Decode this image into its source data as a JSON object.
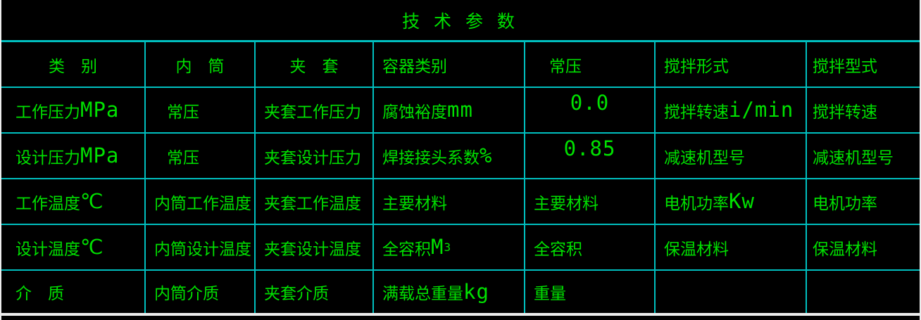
{
  "title": "技 术 参 数",
  "colors": {
    "background": "#000000",
    "grid_line": "#00bfbf",
    "outer_border": "#ededed",
    "text_green": "#00e000"
  },
  "grid": {
    "rows": [
      {
        "cells": [
          {
            "zh": "类　别"
          },
          {
            "zh": "内　筒"
          },
          {
            "zh": "夹　套"
          },
          {
            "zh": "容器类别"
          },
          {
            "zh": "常压"
          },
          {
            "zh": "搅拌形式"
          },
          {
            "zh": "搅拌型式"
          }
        ]
      },
      {
        "cells": [
          {
            "zh": "工作压力",
            "en": " MPa"
          },
          {
            "zh": "常压"
          },
          {
            "zh": "夹套工作压力"
          },
          {
            "zh": "腐蚀裕度",
            "en": " mm"
          },
          {
            "en": "0.0"
          },
          {
            "zh": "搅拌转速",
            "en": " i/min"
          },
          {
            "zh": "搅拌转速"
          }
        ]
      },
      {
        "cells": [
          {
            "zh": "设计压力",
            "en": " MPa"
          },
          {
            "zh": "常压"
          },
          {
            "zh": "夹套设计压力"
          },
          {
            "zh": "焊接接头系数",
            "en": " %"
          },
          {
            "en": "0.85"
          },
          {
            "zh": "减速机型号"
          },
          {
            "zh": "减速机型号"
          }
        ]
      },
      {
        "cells": [
          {
            "zh": "工作温度",
            "en": " ℃"
          },
          {
            "zh": "内筒工作温度"
          },
          {
            "zh": "夹套工作温度"
          },
          {
            "zh": "主要材料"
          },
          {
            "zh": "主要材料"
          },
          {
            "zh": "电机功率",
            "en": " Kw"
          },
          {
            "zh": "电机功率"
          }
        ]
      },
      {
        "cells": [
          {
            "zh": "设计温度",
            "en": " ℃"
          },
          {
            "zh": "内筒设计温度"
          },
          {
            "zh": "夹套设计温度"
          },
          {
            "zh": "全容积",
            "en": " M",
            "sup": "3"
          },
          {
            "zh": "全容积"
          },
          {
            "zh": "保温材料"
          },
          {
            "zh": "保温材料"
          }
        ]
      },
      {
        "cells": [
          {
            "zh": "介　质"
          },
          {
            "zh": "内筒介质"
          },
          {
            "zh": "夹套介质"
          },
          {
            "zh": "满载总重量",
            "en": "kg"
          },
          {
            "zh": "重量"
          },
          {},
          {}
        ]
      }
    ]
  }
}
